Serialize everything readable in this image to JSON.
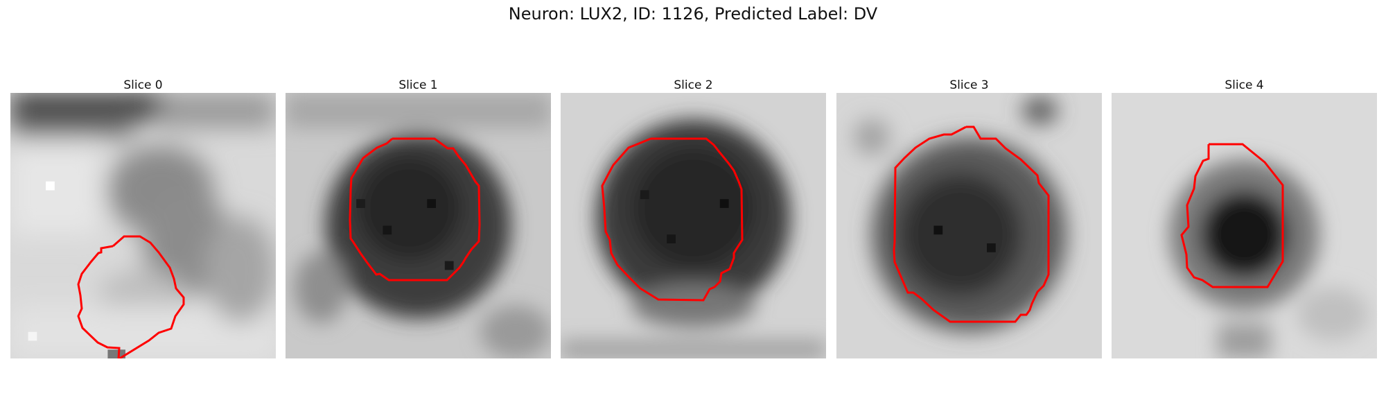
{
  "figure": {
    "title": "Neuron: LUX2, ID: 1126, Predicted Label: DV",
    "colormap": "gray",
    "contour_color": "#ff0000"
  },
  "panels": [
    {
      "title": "Slice 0"
    },
    {
      "title": "Slice 1"
    },
    {
      "title": "Slice 2"
    },
    {
      "title": "Slice 3"
    },
    {
      "title": "Slice 4"
    }
  ]
}
